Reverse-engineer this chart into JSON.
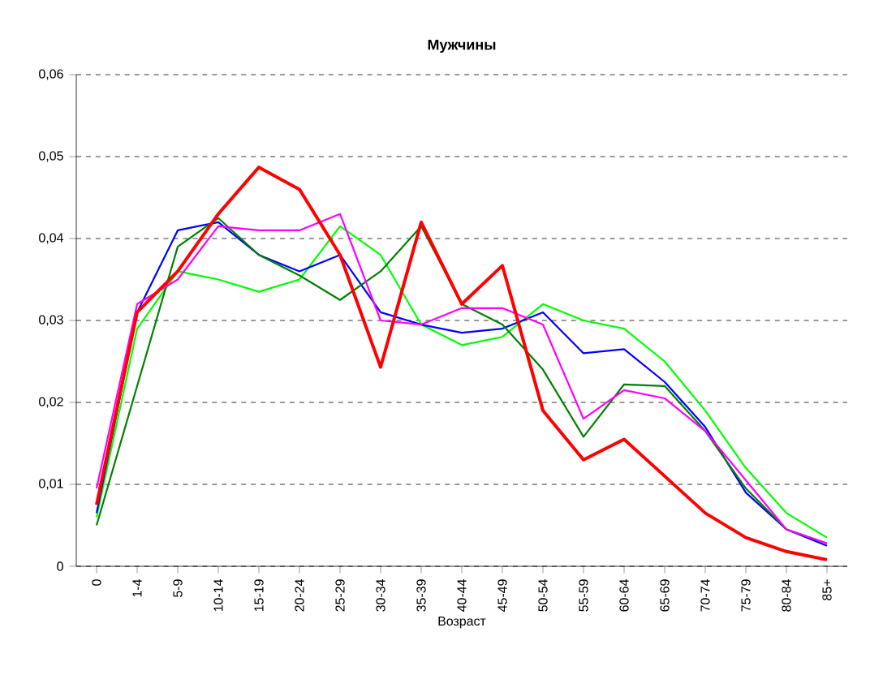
{
  "chart_data": {
    "type": "line",
    "title": "Мужчины",
    "xlabel": "Возраст",
    "categories": [
      "0",
      "1-4",
      "5-9",
      "10-14",
      "15-19",
      "20-24",
      "25-29",
      "30-34",
      "35-39",
      "40-44",
      "45-49",
      "50-54",
      "55-59",
      "60-64",
      "65-69",
      "70-74",
      "75-79",
      "80-84",
      "85+"
    ],
    "ylim": [
      0,
      0.06
    ],
    "yticks": [
      {
        "value": 0,
        "label": "0"
      },
      {
        "value": 0.01,
        "label": "0,01"
      },
      {
        "value": 0.02,
        "label": "0,02"
      },
      {
        "value": 0.03,
        "label": "0,03"
      },
      {
        "value": 0.04,
        "label": "0,04"
      },
      {
        "value": 0.05,
        "label": "0,05"
      },
      {
        "value": 0.06,
        "label": "0,06"
      }
    ],
    "grid": "y",
    "marker": "none",
    "line_style": "solid",
    "series": [
      {
        "color": "#00ff00",
        "values": [
          0.006,
          0.029,
          0.036,
          0.035,
          0.0335,
          0.035,
          0.0415,
          0.038,
          0.0295,
          0.027,
          0.028,
          0.032,
          0.03,
          0.029,
          0.025,
          0.019,
          0.012,
          0.0065,
          0.0035
        ]
      },
      {
        "color": "#0000ff",
        "values": [
          0.0065,
          0.031,
          0.041,
          0.042,
          0.038,
          0.036,
          0.038,
          0.031,
          0.0295,
          0.0285,
          0.029,
          0.031,
          0.026,
          0.0265,
          0.0225,
          0.017,
          0.009,
          0.0045,
          0.0025
        ]
      },
      {
        "color": "#008000",
        "values": [
          0.005,
          0.022,
          0.039,
          0.0425,
          0.038,
          0.0355,
          0.0325,
          0.036,
          0.0415,
          0.032,
          0.0295,
          0.024,
          0.0158,
          0.0222,
          0.022,
          0.0165,
          0.0095,
          0.0045,
          0.0028
        ]
      },
      {
        "color": "#ff00ff",
        "values": [
          0.0095,
          0.032,
          0.035,
          0.0415,
          0.041,
          0.041,
          0.043,
          0.03,
          0.0295,
          0.0315,
          0.0315,
          0.0295,
          0.018,
          0.0215,
          0.0205,
          0.0165,
          0.0105,
          0.0045,
          0.0028
        ]
      },
      {
        "color": "#ff0000",
        "values": [
          0.0075,
          0.031,
          0.036,
          0.043,
          0.0487,
          0.046,
          0.038,
          0.0243,
          0.042,
          0.032,
          0.0367,
          0.019,
          0.013,
          0.0155,
          0.011,
          0.0065,
          0.0035,
          0.0018,
          0.0008
        ]
      }
    ]
  }
}
